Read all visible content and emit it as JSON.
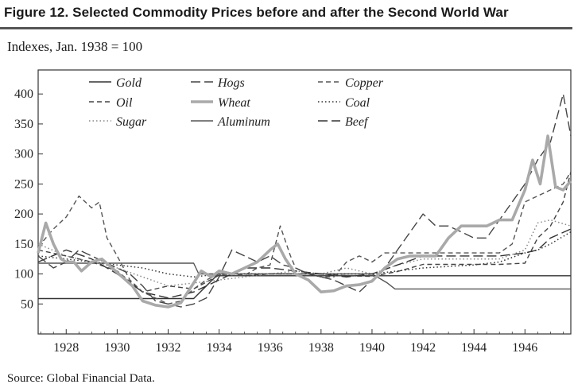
{
  "figure": {
    "title": "Figure 12.  Selected Commodity Prices before and after the Second World War",
    "subtitle": "Indexes, Jan. 1938 = 100",
    "source": "Source: Global Financial Data."
  },
  "chart_data": {
    "type": "line",
    "title": "Selected Commodity Prices before and after the Second World War",
    "ylabel": "Indexes, Jan. 1938 = 100",
    "xlabel": "",
    "xlim": [
      1926.9,
      1947.8
    ],
    "ylim": [
      0,
      440
    ],
    "x_ticks": [
      1928,
      1930,
      1932,
      1934,
      1936,
      1938,
      1940,
      1942,
      1944,
      1946
    ],
    "x_tick_labels": [
      "1928",
      "1930",
      "1932",
      "1934",
      "1936",
      "1938",
      "1940",
      "1942",
      "1944",
      "1946"
    ],
    "y_ticks": [
      50,
      100,
      150,
      200,
      250,
      300,
      350,
      400
    ],
    "y_tick_labels": [
      "50",
      "100",
      "150",
      "200",
      "250",
      "300",
      "350",
      "400"
    ],
    "legend_position": "top",
    "series": [
      {
        "name": "Gold",
        "style": "solid",
        "color": "#333333",
        "x": [
          1926.9,
          1933.0,
          1933.9,
          1947.8
        ],
        "y": [
          59,
          59,
          97,
          97
        ]
      },
      {
        "name": "Oil",
        "style": "dash",
        "color": "#444444",
        "x": [
          1926.9,
          1928.0,
          1929.0,
          1930.0,
          1931.0,
          1932.0,
          1933.0,
          1934.0,
          1935.0,
          1936.0,
          1937.0,
          1938.0,
          1939.0,
          1940.0,
          1941.0,
          1942.0,
          1943.0,
          1944.0,
          1945.0,
          1946.0,
          1946.5,
          1947.0,
          1947.5,
          1947.8
        ],
        "y": [
          140,
          130,
          120,
          105,
          70,
          80,
          75,
          98,
          97,
          100,
          100,
          100,
          97,
          96,
          104,
          116,
          116,
          116,
          116,
          118,
          160,
          180,
          220,
          270
        ]
      },
      {
        "name": "Sugar",
        "style": "dotted",
        "color": "#888888",
        "x": [
          1926.9,
          1928.0,
          1929.0,
          1930.0,
          1931.0,
          1932.0,
          1933.0,
          1934.0,
          1935.0,
          1936.0,
          1937.0,
          1938.0,
          1939.0,
          1940.0,
          1941.0,
          1942.0,
          1943.0,
          1944.0,
          1945.0,
          1946.0,
          1946.5,
          1947.0,
          1947.8
        ],
        "y": [
          150,
          130,
          120,
          110,
          95,
          80,
          85,
          90,
          95,
          100,
          105,
          100,
          110,
          100,
          115,
          125,
          125,
          125,
          125,
          140,
          185,
          190,
          180
        ]
      },
      {
        "name": "Hogs",
        "style": "longdash",
        "color": "#444444",
        "x": [
          1926.9,
          1927.5,
          1928.0,
          1928.5,
          1929.0,
          1929.5,
          1930.0,
          1930.5,
          1931.0,
          1931.5,
          1932.0,
          1932.5,
          1933.0,
          1933.5,
          1934.0,
          1934.5,
          1935.0,
          1935.5,
          1936.0,
          1936.5,
          1937.0,
          1937.5,
          1938.0,
          1938.5,
          1939.0,
          1939.5,
          1940.0,
          1940.5,
          1941.0,
          1941.5,
          1942.0,
          1942.5,
          1943.0,
          1943.5,
          1944.0,
          1944.5,
          1945.0,
          1945.5,
          1946.0,
          1946.5,
          1947.0,
          1947.5,
          1947.8
        ],
        "y": [
          130,
          110,
          120,
          140,
          130,
          120,
          110,
          100,
          80,
          55,
          50,
          45,
          50,
          60,
          95,
          140,
          130,
          120,
          130,
          115,
          110,
          100,
          95,
          90,
          80,
          70,
          90,
          110,
          140,
          170,
          200,
          180,
          180,
          170,
          160,
          160,
          190,
          220,
          250,
          290,
          320,
          400,
          330
        ]
      },
      {
        "name": "Wheat",
        "style": "thick",
        "color": "#a9a9a9",
        "x": [
          1926.9,
          1927.2,
          1927.5,
          1927.8,
          1928.0,
          1928.3,
          1928.6,
          1929.0,
          1929.4,
          1929.8,
          1930.2,
          1930.6,
          1931.0,
          1931.5,
          1932.0,
          1932.5,
          1933.0,
          1933.3,
          1933.7,
          1934.0,
          1934.5,
          1935.0,
          1935.5,
          1936.0,
          1936.3,
          1936.6,
          1937.0,
          1937.5,
          1938.0,
          1938.5,
          1939.0,
          1939.5,
          1940.0,
          1940.5,
          1941.0,
          1941.5,
          1942.0,
          1942.5,
          1943.0,
          1943.5,
          1944.0,
          1944.5,
          1945.0,
          1945.5,
          1946.0,
          1946.3,
          1946.6,
          1946.9,
          1947.2,
          1947.5,
          1947.8
        ],
        "y": [
          135,
          185,
          150,
          125,
          120,
          120,
          105,
          120,
          125,
          110,
          95,
          80,
          55,
          48,
          45,
          52,
          85,
          105,
          95,
          105,
          100,
          110,
          120,
          140,
          150,
          125,
          100,
          90,
          70,
          72,
          80,
          82,
          88,
          110,
          125,
          130,
          130,
          130,
          160,
          180,
          180,
          180,
          190,
          190,
          240,
          290,
          250,
          330,
          245,
          240,
          255
        ]
      },
      {
        "name": "Aluminum",
        "style": "solid",
        "color": "#555555",
        "x": [
          1926.9,
          1933.0,
          1933.2,
          1940.0,
          1940.6,
          1940.9,
          1947.8
        ],
        "y": [
          118,
          118,
          100,
          100,
          85,
          75,
          75
        ]
      },
      {
        "name": "Copper",
        "style": "dash",
        "color": "#555555",
        "x": [
          1926.9,
          1927.5,
          1928.0,
          1928.5,
          1929.0,
          1929.3,
          1929.6,
          1930.0,
          1930.5,
          1931.0,
          1931.5,
          1932.0,
          1932.5,
          1933.0,
          1933.5,
          1934.0,
          1934.5,
          1935.0,
          1935.5,
          1936.0,
          1936.4,
          1936.8,
          1937.0,
          1937.5,
          1938.0,
          1938.5,
          1939.0,
          1939.5,
          1940.0,
          1940.5,
          1941.0,
          1942.0,
          1943.0,
          1944.0,
          1945.0,
          1945.5,
          1946.0,
          1946.5,
          1947.0,
          1947.5,
          1947.8
        ],
        "y": [
          145,
          175,
          195,
          230,
          210,
          220,
          160,
          130,
          90,
          70,
          60,
          50,
          55,
          75,
          90,
          100,
          100,
          98,
          110,
          115,
          180,
          130,
          110,
          100,
          95,
          95,
          120,
          130,
          120,
          135,
          135,
          135,
          135,
          135,
          135,
          150,
          220,
          230,
          240,
          250,
          270
        ]
      },
      {
        "name": "Coal",
        "style": "dotted",
        "color": "#333333",
        "x": [
          1926.9,
          1928.0,
          1929.0,
          1930.0,
          1931.0,
          1932.0,
          1933.0,
          1934.0,
          1936.0,
          1938.0,
          1940.0,
          1942.0,
          1944.0,
          1945.0,
          1946.0,
          1946.5,
          1947.0,
          1947.8
        ],
        "y": [
          130,
          125,
          120,
          115,
          110,
          100,
          95,
          100,
          100,
          100,
          100,
          110,
          115,
          120,
          135,
          140,
          150,
          170
        ]
      },
      {
        "name": "Beef",
        "style": "longdash",
        "color": "#333333",
        "x": [
          1926.9,
          1928.0,
          1929.0,
          1930.0,
          1931.0,
          1932.0,
          1933.0,
          1934.0,
          1935.0,
          1936.0,
          1937.0,
          1938.0,
          1939.0,
          1940.0,
          1941.0,
          1942.0,
          1943.0,
          1944.0,
          1945.0,
          1946.0,
          1946.5,
          1947.0,
          1947.8
        ],
        "y": [
          120,
          140,
          125,
          100,
          70,
          60,
          70,
          90,
          110,
          110,
          105,
          100,
          95,
          100,
          115,
          130,
          130,
          130,
          130,
          135,
          140,
          160,
          175
        ]
      }
    ]
  }
}
